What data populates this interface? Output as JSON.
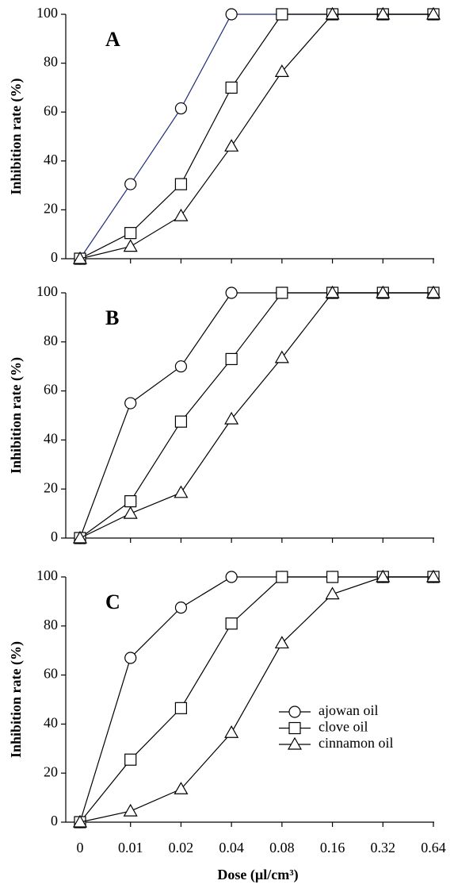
{
  "chart_data": [
    {
      "type": "line",
      "title": "A",
      "y_label": "Inhibition rate (%)",
      "ylim": [
        0,
        100
      ],
      "yticks": [
        0,
        20,
        40,
        60,
        80,
        100
      ],
      "series": [
        {
          "color": "#1f2a7a",
          "marker": "circle",
          "values": [
            0,
            30.5,
            61.5,
            100,
            100,
            100,
            100,
            100
          ]
        },
        {
          "color": "#000000",
          "marker": "square",
          "values": [
            0,
            10.5,
            30.5,
            70,
            100,
            100,
            100,
            100
          ]
        },
        {
          "color": "#000000",
          "marker": "triangle",
          "values": [
            0,
            5,
            17.5,
            46,
            76.5,
            100,
            100,
            100
          ]
        }
      ]
    },
    {
      "type": "line",
      "title": "B",
      "y_label": "Inhibition rate (%)",
      "ylim": [
        0,
        100
      ],
      "yticks": [
        0,
        20,
        40,
        60,
        80,
        100
      ],
      "series": [
        {
          "color": "#000000",
          "marker": "circle",
          "values": [
            0,
            55,
            70,
            100,
            100,
            100,
            100,
            100
          ]
        },
        {
          "color": "#000000",
          "marker": "square",
          "values": [
            0,
            15,
            47.5,
            73,
            100,
            100,
            100,
            100
          ]
        },
        {
          "color": "#000000",
          "marker": "triangle",
          "values": [
            0,
            10,
            18.5,
            48.5,
            73.5,
            100,
            100,
            100
          ]
        }
      ]
    },
    {
      "type": "line",
      "title": "C",
      "y_label": "Inhibition rate (%)",
      "x_label": "Dose (µl/cm³)",
      "categories": [
        "0",
        "0.01",
        "0.02",
        "0.04",
        "0.08",
        "0.16",
        "0.32",
        "0.64"
      ],
      "ylim": [
        0,
        100
      ],
      "yticks": [
        0,
        20,
        40,
        60,
        80,
        100
      ],
      "legend": "lower right",
      "series": [
        {
          "name": "ajowan oil",
          "color": "#000000",
          "marker": "circle",
          "values": [
            0,
            67,
            87.5,
            100,
            100,
            100,
            100,
            100
          ]
        },
        {
          "name": "clove oil",
          "color": "#000000",
          "marker": "square",
          "values": [
            0,
            25.5,
            46.5,
            81,
            100,
            100,
            100,
            100
          ]
        },
        {
          "name": "cinnamon oil",
          "color": "#000000",
          "marker": "triangle",
          "values": [
            0,
            4.5,
            13.5,
            36.5,
            73,
            93,
            100,
            100
          ]
        }
      ]
    }
  ]
}
